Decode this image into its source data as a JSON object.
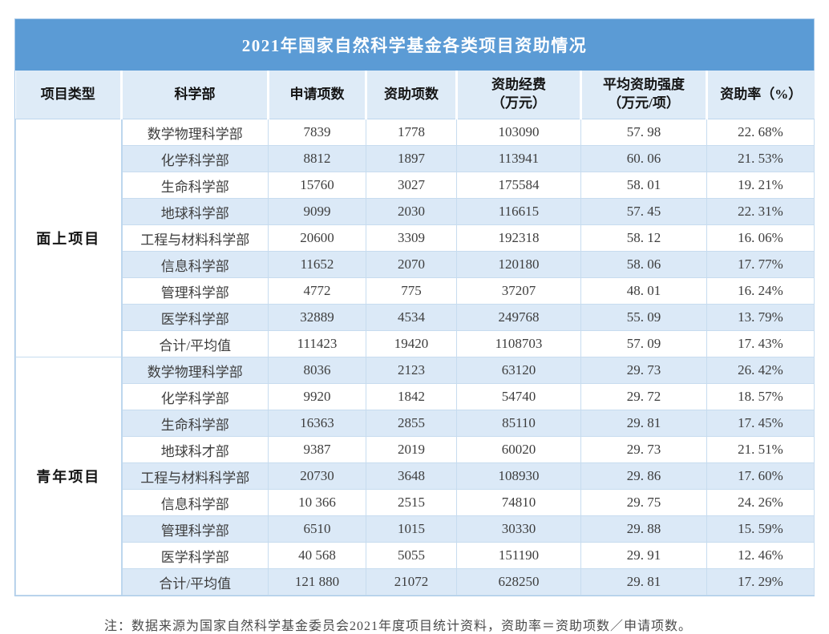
{
  "title": "2021年国家自然科学基金各类项目资助情况",
  "columns": [
    "项目类型",
    "科学部",
    "申请项数",
    "资助项数",
    "资助经费\n（万元）",
    "平均资助强度\n（万元/项）",
    "资助率（%）"
  ],
  "sections": [
    {
      "type": "面上项目",
      "rows": [
        {
          "dept": "数学物理科学部",
          "applied": "7839",
          "funded": "1778",
          "amount": "103090",
          "avg": "57. 98",
          "rate": "22. 68%"
        },
        {
          "dept": "化学科学部",
          "applied": "8812",
          "funded": "1897",
          "amount": "113941",
          "avg": "60. 06",
          "rate": "21. 53%"
        },
        {
          "dept": "生命科学部",
          "applied": "15760",
          "funded": "3027",
          "amount": "175584",
          "avg": "58. 01",
          "rate": "19. 21%"
        },
        {
          "dept": "地球科学部",
          "applied": "9099",
          "funded": "2030",
          "amount": "116615",
          "avg": "57. 45",
          "rate": "22. 31%"
        },
        {
          "dept": "工程与材料科学部",
          "applied": "20600",
          "funded": "3309",
          "amount": "192318",
          "avg": "58. 12",
          "rate": "16. 06%"
        },
        {
          "dept": "信息科学部",
          "applied": "11652",
          "funded": "2070",
          "amount": "120180",
          "avg": "58. 06",
          "rate": "17. 77%"
        },
        {
          "dept": "管理科学部",
          "applied": "4772",
          "funded": "775",
          "amount": "37207",
          "avg": "48. 01",
          "rate": "16. 24%"
        },
        {
          "dept": "医学科学部",
          "applied": "32889",
          "funded": "4534",
          "amount": "249768",
          "avg": "55. 09",
          "rate": "13. 79%"
        },
        {
          "dept": "合计/平均值",
          "applied": "111423",
          "funded": "19420",
          "amount": "1108703",
          "avg": "57. 09",
          "rate": "17. 43%"
        }
      ]
    },
    {
      "type": "青年项目",
      "rows": [
        {
          "dept": "数学物理科学部",
          "applied": "8036",
          "funded": "2123",
          "amount": "63120",
          "avg": "29. 73",
          "rate": "26. 42%"
        },
        {
          "dept": "化学科学部",
          "applied": "9920",
          "funded": "1842",
          "amount": "54740",
          "avg": "29. 72",
          "rate": "18. 57%"
        },
        {
          "dept": "生命科学部",
          "applied": "16363",
          "funded": "2855",
          "amount": "85110",
          "avg": "29. 81",
          "rate": "17. 45%"
        },
        {
          "dept": "地球科才部",
          "applied": "9387",
          "funded": "2019",
          "amount": "60020",
          "avg": "29. 73",
          "rate": "21. 51%"
        },
        {
          "dept": "工程与材料科学部",
          "applied": "20730",
          "funded": "3648",
          "amount": "108930",
          "avg": "29. 86",
          "rate": "17. 60%"
        },
        {
          "dept": "信息科学部",
          "applied": "10 366",
          "funded": "2515",
          "amount": "74810",
          "avg": "29. 75",
          "rate": "24. 26%"
        },
        {
          "dept": "管理科学部",
          "applied": "6510",
          "funded": "1015",
          "amount": "30330",
          "avg": "29. 88",
          "rate": "15. 59%"
        },
        {
          "dept": "医学科学部",
          "applied": "40 568",
          "funded": "5055",
          "amount": "151190",
          "avg": "29. 91",
          "rate": "12. 46%"
        },
        {
          "dept": "合计/平均值",
          "applied": "121 880",
          "funded": "21072",
          "amount": "628250",
          "avg": "29. 81",
          "rate": "17. 29%"
        }
      ]
    }
  ],
  "footnote": "注：数据来源为国家自然科学基金委员会2021年度项目统计资料，资助率＝资助项数／申请项数。"
}
